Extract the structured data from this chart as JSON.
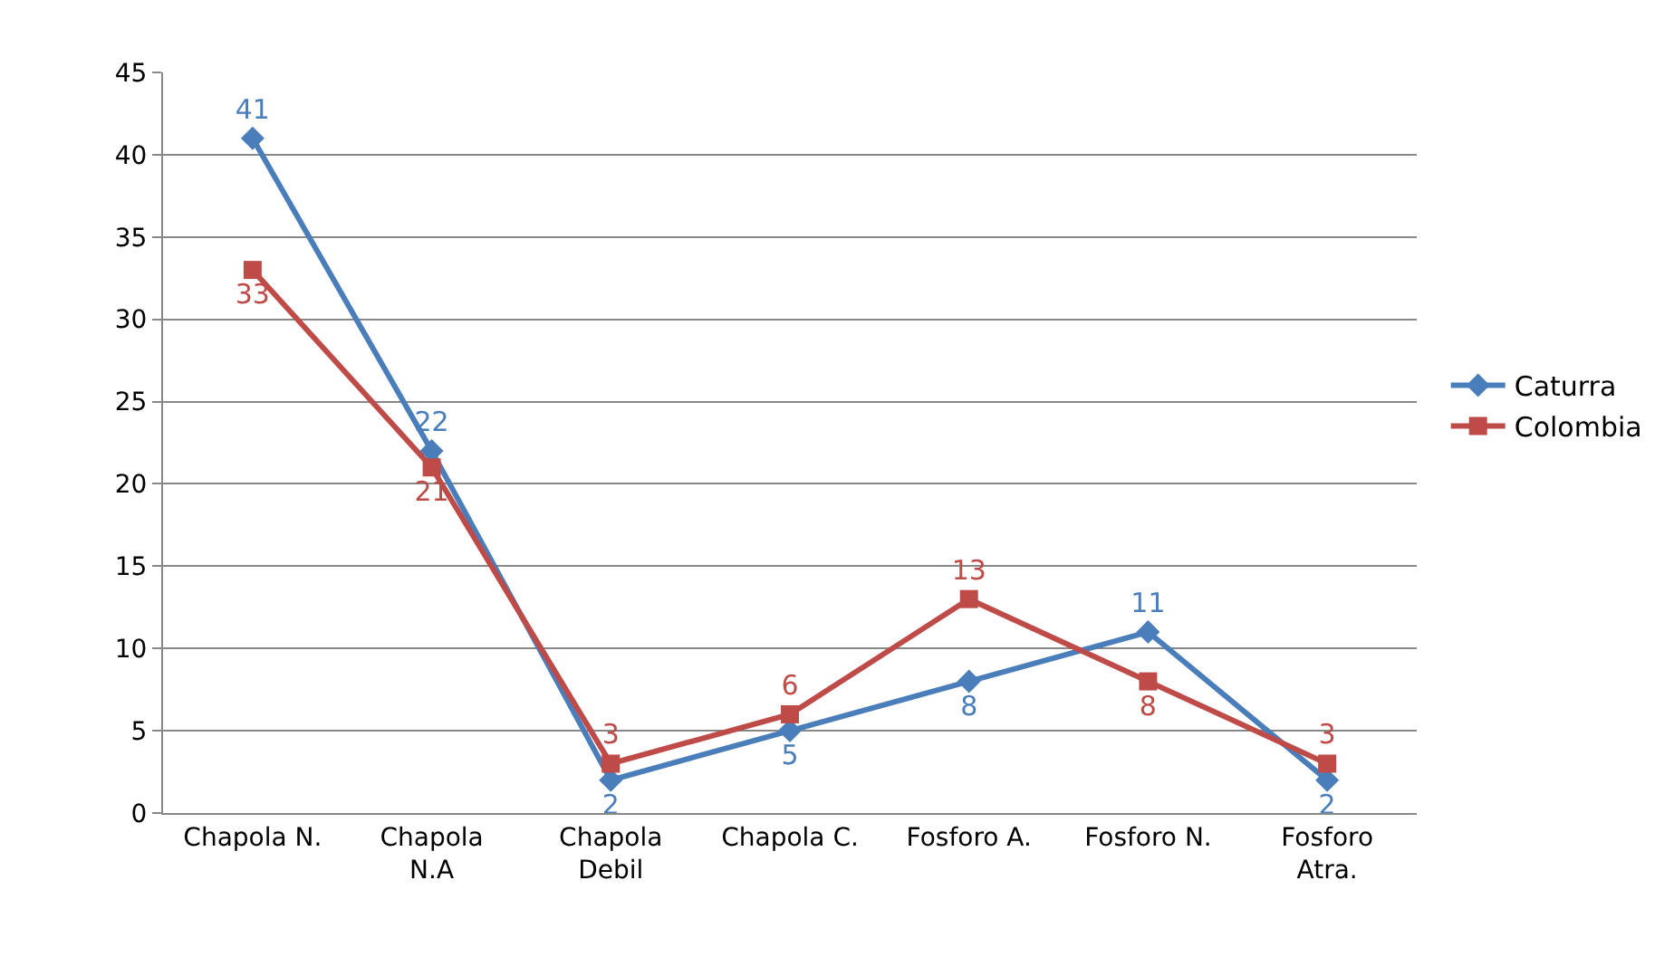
{
  "chart_data": {
    "type": "line",
    "categories": [
      "Chapola N.",
      "Chapola N.A",
      "Chapola Debil",
      "Chapola C.",
      "Fosforo A.",
      "Fosforo N.",
      "Fosforo Atra."
    ],
    "series": [
      {
        "name": "Caturra",
        "color": "#4a7ebb",
        "marker": "diamond",
        "values": [
          41,
          22,
          2,
          5,
          8,
          11,
          2
        ]
      },
      {
        "name": "Colombia",
        "color": "#be4b48",
        "marker": "square",
        "values": [
          33,
          21,
          3,
          6,
          13,
          8,
          3
        ]
      }
    ],
    "ylim": [
      0,
      45
    ],
    "yticks": [
      0,
      5,
      10,
      15,
      20,
      25,
      30,
      35,
      40,
      45
    ],
    "grid": "y",
    "legend": "right",
    "data_labels": true,
    "line_style": "solid"
  }
}
